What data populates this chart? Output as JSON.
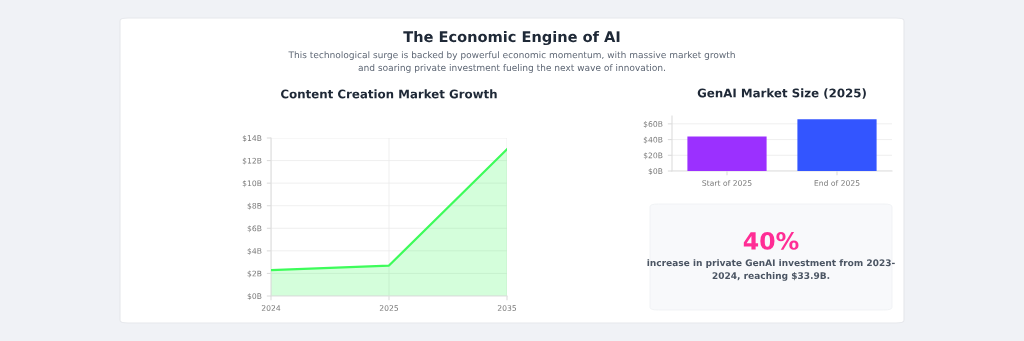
{
  "chart_data": [
    {
      "type": "other",
      "title": "The Economic Engine of AI",
      "subtitle": "This technological surge is backed by powerful economic momentum, with massive market growth\nand soaring private investment fueling the next wave of innovation."
    },
    {
      "type": "area",
      "title": "Content Creation Market Growth",
      "categories": [
        "2024",
        "2025",
        "2035"
      ],
      "series": [
        {
          "color": "#3dfc5a",
          "values": [
            2.3,
            2.7,
            13
          ]
        }
      ],
      "ylim": [
        0,
        14
      ],
      "yticks": [
        {
          "value": 0,
          "label": "$0B"
        },
        {
          "value": 2,
          "label": "$2B"
        },
        {
          "value": 4,
          "label": "$4B"
        },
        {
          "value": 6,
          "label": "$6B"
        },
        {
          "value": 8,
          "label": "$8B"
        },
        {
          "value": 10,
          "label": "$10B"
        },
        {
          "value": 12,
          "label": "$12B"
        },
        {
          "value": 14,
          "label": "$14B"
        }
      ],
      "grid": true,
      "marker": "none"
    },
    {
      "type": "bar",
      "title": "GenAI Market Size (2025)",
      "categories": [
        "Start of 2025",
        "End of 2025"
      ],
      "values": [
        44,
        66
      ],
      "colors": [
        "#9b30ff",
        "#3355ff"
      ],
      "ylim": [
        0,
        70
      ],
      "yticks": [
        {
          "value": 0,
          "label": "$0B"
        },
        {
          "value": 20,
          "label": "$20B"
        },
        {
          "value": 40,
          "label": "$40B"
        },
        {
          "value": 60,
          "label": "$60B"
        }
      ],
      "grid": "y"
    },
    {
      "type": "other",
      "title": "40%",
      "annotations": [
        "increase in private GenAI investment from 2023-\n2024, reaching $33.9B."
      ]
    }
  ]
}
